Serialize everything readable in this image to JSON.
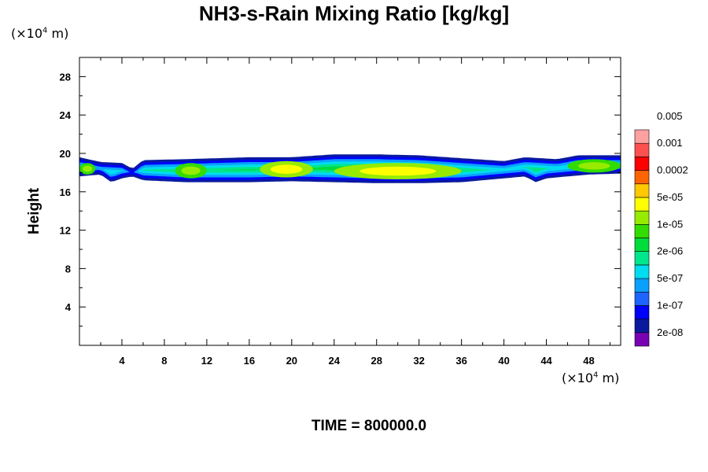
{
  "chart_data": {
    "type": "heatmap",
    "title": "NH3-s-Rain Mixing Ratio [kg/kg]",
    "xlabel": "",
    "ylabel": "Height",
    "x_unit": {
      "base": "(×10",
      "exp": "4",
      "rest": " m)"
    },
    "y_unit": {
      "base": "(×10",
      "exp": "4",
      "rest": " m)"
    },
    "xlim": [
      0,
      51
    ],
    "ylim": [
      0,
      30
    ],
    "x_ticks": [
      4,
      8,
      12,
      16,
      20,
      24,
      28,
      32,
      36,
      40,
      44,
      48
    ],
    "y_ticks": [
      4,
      8,
      12,
      16,
      20,
      24,
      28
    ],
    "colorbar": {
      "levels": [
        "2e-08",
        "1e-07",
        "5e-07",
        "2e-06",
        "1e-05",
        "5e-05",
        "0.0002",
        "0.001",
        "0.005"
      ],
      "colors": [
        "#7a00b4",
        "#0a1a9e",
        "#0000ff",
        "#1e64ff",
        "#0aa0ff",
        "#00dcf0",
        "#00e68c",
        "#00dc3c",
        "#32dc00",
        "#96eb00",
        "#ffff00",
        "#ffc800",
        "#ff6400",
        "#ff0000",
        "#ff5050",
        "#ffa0a0"
      ]
    },
    "layer": {
      "description_range_y": [
        17,
        20
      ],
      "top_profile": [
        [
          0,
          19.6
        ],
        [
          2,
          19.1
        ],
        [
          4,
          19.0
        ],
        [
          5,
          18.4
        ],
        [
          6,
          19.3
        ],
        [
          10,
          19.4
        ],
        [
          16,
          19.6
        ],
        [
          20,
          19.6
        ],
        [
          24,
          19.9
        ],
        [
          28,
          19.9
        ],
        [
          32,
          19.8
        ],
        [
          36,
          19.5
        ],
        [
          40,
          19.2
        ],
        [
          42,
          19.6
        ],
        [
          45,
          19.4
        ],
        [
          47,
          19.8
        ],
        [
          51,
          19.8
        ]
      ],
      "bottom_profile": [
        [
          0,
          17.6
        ],
        [
          2,
          17.8
        ],
        [
          3,
          17.0
        ],
        [
          4,
          17.4
        ],
        [
          5,
          17.6
        ],
        [
          6,
          17.2
        ],
        [
          10,
          17.0
        ],
        [
          16,
          17.0
        ],
        [
          20,
          17.1
        ],
        [
          24,
          17.0
        ],
        [
          28,
          16.9
        ],
        [
          32,
          16.9
        ],
        [
          36,
          17.0
        ],
        [
          40,
          17.4
        ],
        [
          42,
          17.6
        ],
        [
          43,
          17.0
        ],
        [
          44,
          17.4
        ],
        [
          46,
          17.6
        ],
        [
          48,
          17.8
        ],
        [
          51,
          17.9
        ]
      ],
      "cores": [
        {
          "x": [
            0,
            1.5
          ],
          "y": [
            17.8,
            19.0
          ],
          "level": 8
        },
        {
          "x": [
            9,
            12
          ],
          "y": [
            17.4,
            19.0
          ],
          "level": 8
        },
        {
          "x": [
            17,
            22
          ],
          "y": [
            17.5,
            19.2
          ],
          "level": 9
        },
        {
          "x": [
            24,
            36
          ],
          "y": [
            17.3,
            19.0
          ],
          "level": 9
        },
        {
          "x": [
            46,
            51
          ],
          "y": [
            18.0,
            19.4
          ],
          "level": 8
        }
      ]
    }
  },
  "time_label": "TIME = 800000.0"
}
